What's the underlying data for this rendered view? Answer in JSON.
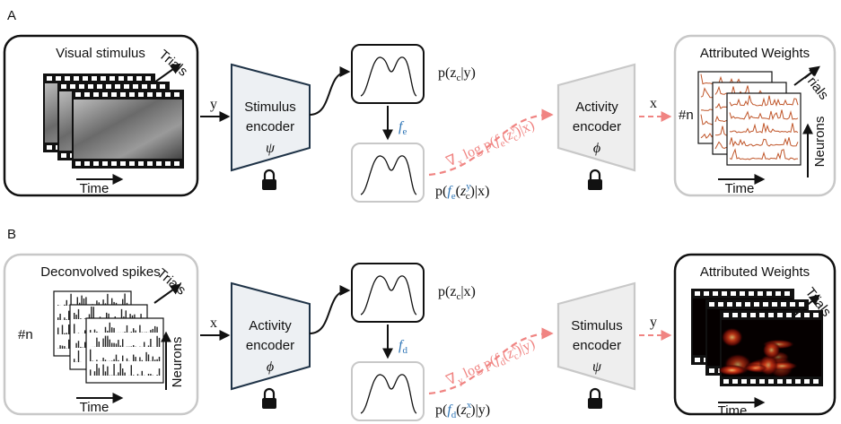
{
  "panels": [
    {
      "label": "A",
      "input": {
        "title": "Visual stimulus",
        "trials": "Trials",
        "time": "Time"
      },
      "input_var": "y",
      "encoder_in": {
        "name": [
          "Stimulus",
          "encoder"
        ],
        "symbol": "ψ"
      },
      "prior": [
        "p(z",
        "c",
        "|y)"
      ],
      "transform": [
        "f",
        "e"
      ],
      "posterior": [
        "p(",
        "f",
        "e",
        "(",
        "z",
        "y",
        "c",
        ")|x)"
      ],
      "gradient": [
        "∇",
        "x",
        " log ",
        "p(",
        "f",
        "e",
        "(",
        "z",
        "y",
        "c",
        ")|x)"
      ],
      "encoder_out": {
        "name": [
          "Activity",
          "encoder"
        ],
        "symbol": "ϕ"
      },
      "output_var": "x",
      "output": {
        "title": "Attributed Weights",
        "count": "#n",
        "trials": "Trials",
        "neurons": "Neurons",
        "time": "Time"
      }
    },
    {
      "label": "B",
      "input": {
        "title": "Deconvolved spikes",
        "count": "#n",
        "trials": "Trials",
        "neurons": "Neurons",
        "time": "Time"
      },
      "input_var": "x",
      "encoder_in": {
        "name": [
          "Activity",
          "encoder"
        ],
        "symbol": "ϕ"
      },
      "prior": [
        "p(z",
        "c",
        "|x)"
      ],
      "transform": [
        "f",
        "d"
      ],
      "posterior": [
        "p(",
        "f",
        "d",
        "(",
        "z",
        "x",
        "c",
        ")|y)"
      ],
      "gradient": [
        "∇",
        "y",
        " log ",
        "p(",
        "f",
        "d",
        "(",
        "z",
        "x",
        "c",
        ")|y)"
      ],
      "encoder_out": {
        "name": [
          "Stimulus",
          "encoder"
        ],
        "symbol": "ψ"
      },
      "output_var": "y",
      "output": {
        "title": "Attributed Weights",
        "trials": "Trials",
        "time": "Time"
      }
    }
  ]
}
